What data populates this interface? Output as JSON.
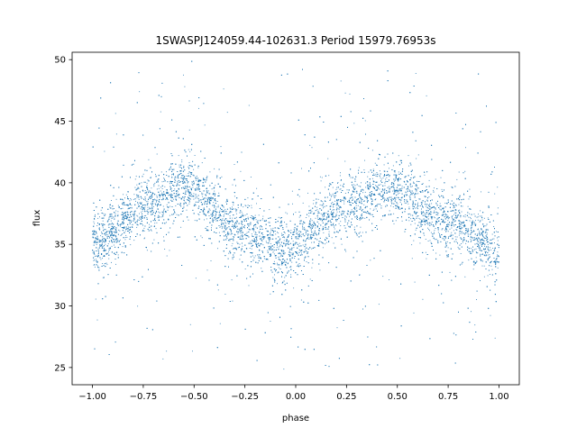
{
  "chart_data": {
    "type": "scatter",
    "title": "1SWASPJ124059.44-102631.3 Period 15979.76953s",
    "xlabel": "phase",
    "ylabel": "flux",
    "xlim": [
      -1.1,
      1.1
    ],
    "ylim": [
      23.6,
      50.6
    ],
    "xticks": [
      -1.0,
      -0.75,
      -0.5,
      -0.25,
      0.0,
      0.25,
      0.5,
      0.75,
      1.0
    ],
    "xtick_labels": [
      "−1.00",
      "−0.75",
      "−0.50",
      "−0.25",
      "0.00",
      "0.25",
      "0.50",
      "0.75",
      "1.00"
    ],
    "yticks": [
      25,
      30,
      35,
      40,
      45,
      50
    ],
    "ytick_labels": [
      "25",
      "30",
      "35",
      "40",
      "45",
      "50"
    ],
    "grid": false,
    "legend": "none",
    "marker_color": "#1f77b4",
    "series": [
      {
        "profile": [
          {
            "x": -1.0,
            "y": 35.0
          },
          {
            "x": -0.75,
            "y": 38.0
          },
          {
            "x": -0.55,
            "y": 39.7
          },
          {
            "x": -0.25,
            "y": 36.0
          },
          {
            "x": -0.05,
            "y": 34.6
          },
          {
            "x": 0.25,
            "y": 38.2
          },
          {
            "x": 0.42,
            "y": 39.6
          },
          {
            "x": 0.75,
            "y": 36.8
          },
          {
            "x": 1.0,
            "y": 34.6
          }
        ],
        "core_scatter": 1.2,
        "outlier_range": [
          24.8,
          49.5
        ]
      }
    ]
  }
}
